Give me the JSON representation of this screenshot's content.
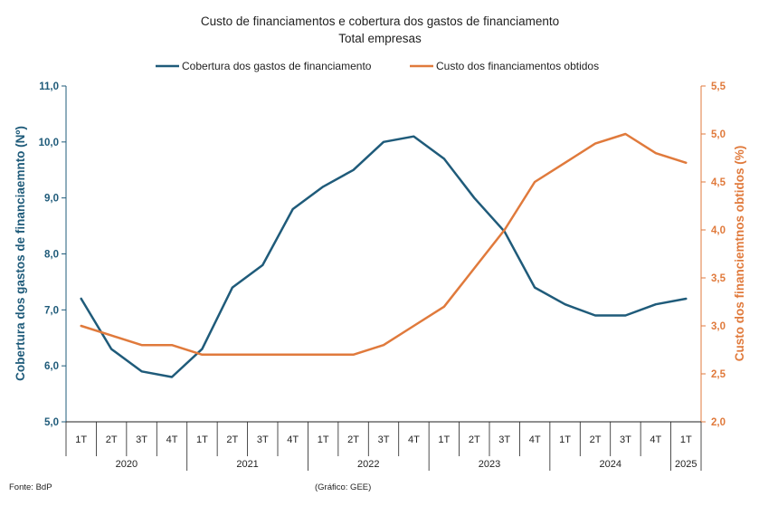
{
  "colors": {
    "left": "#1f5b7a",
    "right": "#e07a3c"
  },
  "chart_data": {
    "type": "line",
    "title": "Custo de financiamentos e cobertura dos gastos de financiamento",
    "subtitle": "Total empresas",
    "categories": [
      "1T",
      "2T",
      "3T",
      "4T",
      "1T",
      "2T",
      "3T",
      "4T",
      "1T",
      "2T",
      "3T",
      "4T",
      "1T",
      "2T",
      "3T",
      "4T",
      "1T",
      "2T",
      "3T",
      "4T",
      "1T"
    ],
    "years": [
      {
        "label": "2020",
        "count": 4
      },
      {
        "label": "2021",
        "count": 4
      },
      {
        "label": "2022",
        "count": 4
      },
      {
        "label": "2023",
        "count": 4
      },
      {
        "label": "2024",
        "count": 4
      },
      {
        "label": "2025",
        "count": 1
      }
    ],
    "series": [
      {
        "name": "Cobertura dos gastos de financiamento",
        "axis": "left",
        "color": "#1f5b7a",
        "values": [
          7.2,
          6.3,
          5.9,
          5.8,
          6.3,
          7.4,
          7.8,
          8.8,
          9.2,
          9.5,
          10.0,
          10.1,
          9.7,
          9.0,
          8.4,
          7.4,
          7.1,
          6.9,
          6.9,
          7.1,
          7.2
        ]
      },
      {
        "name": "Custo dos financiamentos obtidos",
        "axis": "right",
        "color": "#e07a3c",
        "values": [
          3.0,
          2.9,
          2.8,
          2.8,
          2.7,
          2.7,
          2.7,
          2.7,
          2.7,
          2.7,
          2.8,
          3.0,
          3.2,
          3.6,
          4.0,
          4.5,
          4.7,
          4.9,
          5.0,
          4.8,
          4.7
        ]
      }
    ],
    "yleft": {
      "label": "Cobertura dos gastos de financiaemnto (Nº)",
      "ylim": [
        5,
        11
      ],
      "ticks": [
        "5,0",
        "6,0",
        "7,0",
        "8,0",
        "9,0",
        "10,0",
        "11,0"
      ]
    },
    "yright": {
      "label": "Custo dos financiemtnos obtidos (%)",
      "ylim": [
        2,
        5.5
      ],
      "ticks": [
        "2,0",
        "2,5",
        "3,0",
        "3,5",
        "4,0",
        "4,5",
        "5,0",
        "5,5"
      ]
    },
    "legend_position": "top-center",
    "grid": false
  },
  "footer": {
    "source": "Fonte: BdP",
    "credit": "(Gráfico: GEE)"
  }
}
